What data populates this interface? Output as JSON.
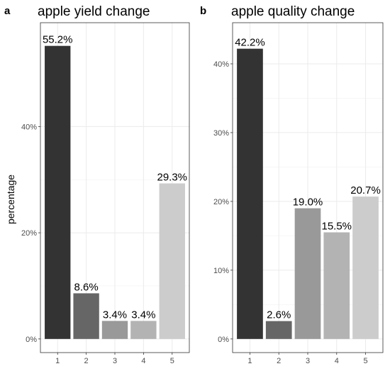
{
  "chart_data": [
    {
      "type": "bar",
      "panel": "a",
      "title": "apple yield change",
      "ylabel": "percentage",
      "xlabel": "",
      "categories": [
        "1",
        "2",
        "3",
        "4",
        "5"
      ],
      "values": [
        55.2,
        8.6,
        3.4,
        3.4,
        29.3
      ],
      "labels": [
        "55.2%",
        "8.6%",
        "3.4%",
        "3.4%",
        "29.3%"
      ],
      "colors": [
        "#333333",
        "#666666",
        "#999999",
        "#b3b3b3",
        "#cccccc"
      ],
      "ylim": [
        0,
        57
      ],
      "yticks": [
        0,
        20,
        40
      ],
      "ytick_labels": [
        "0%",
        "20%",
        "40%"
      ],
      "grid": true
    },
    {
      "type": "bar",
      "panel": "b",
      "title": "apple quality change",
      "ylabel": "",
      "xlabel": "",
      "categories": [
        "1",
        "2",
        "3",
        "4",
        "5"
      ],
      "values": [
        42.2,
        2.6,
        19.0,
        15.5,
        20.7
      ],
      "labels": [
        "42.2%",
        "2.6%",
        "19.0%",
        "15.5%",
        "20.7%"
      ],
      "colors": [
        "#333333",
        "#666666",
        "#999999",
        "#b3b3b3",
        "#cccccc"
      ],
      "ylim": [
        0,
        44
      ],
      "yticks": [
        0,
        10,
        20,
        30,
        40
      ],
      "ytick_labels": [
        "0%",
        "10%",
        "20%",
        "30%",
        "40%"
      ],
      "grid": true
    }
  ]
}
